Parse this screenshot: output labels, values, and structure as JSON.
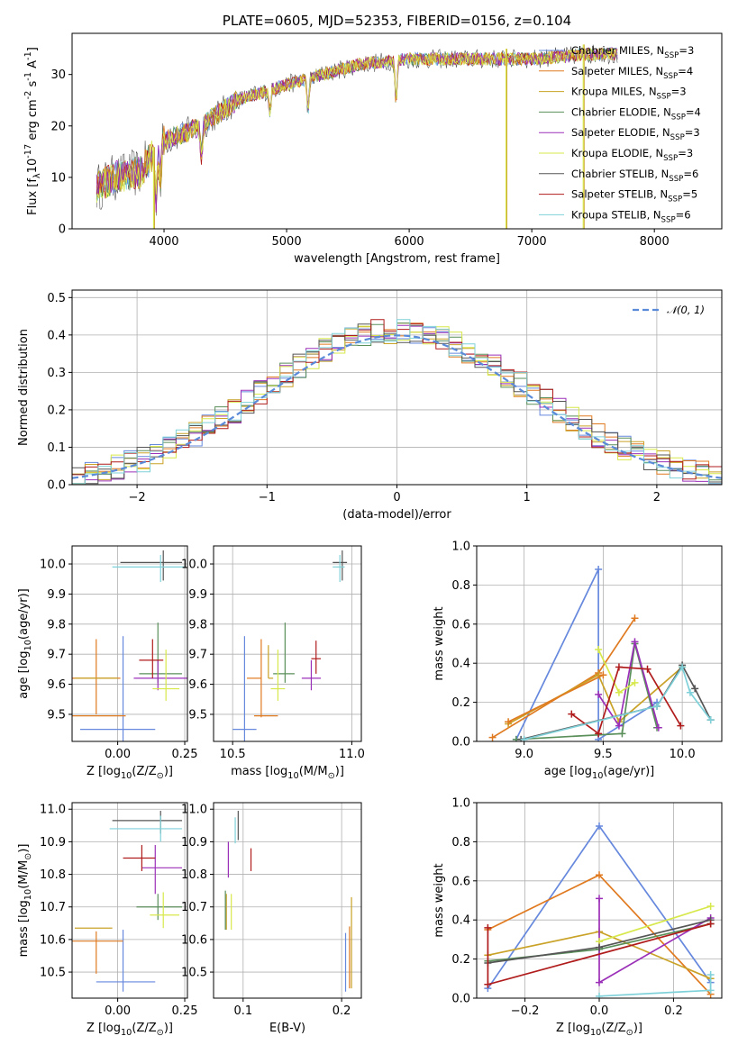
{
  "figure": {
    "title": "PLATE=0605, MJD=52353, FIBERID=0156, z=0.104"
  },
  "models": [
    {
      "name": "Chabrier MILES, N$_{SSP}$=3",
      "color": "#6688dd"
    },
    {
      "name": "Salpeter MILES, N$_{SSP}$=4",
      "color": "#e07a20"
    },
    {
      "name": "Kroupa MILES, N$_{SSP}$=3",
      "color": "#c9a227"
    },
    {
      "name": "Chabrier ELODIE, N$_{SSP}$=4",
      "color": "#5a8f5a"
    },
    {
      "name": "Salpeter ELODIE, N$_{SSP}$=3",
      "color": "#9b30b8"
    },
    {
      "name": "Kroupa ELODIE, N$_{SSP}$=3",
      "color": "#d7e84a"
    },
    {
      "name": "Chabrier STELIB, N$_{SSP}$=6",
      "color": "#555555"
    },
    {
      "name": "Salpeter STELIB, N$_{SSP}$=5",
      "color": "#b01c1c"
    },
    {
      "name": "Kroupa STELIB, N$_{SSP}$=6",
      "color": "#7fd1d9"
    }
  ],
  "chart_data": [
    {
      "id": "spectrum",
      "type": "line",
      "xlabel": "wavelength [Angstrom, rest frame]",
      "ylabel": "Flux [f$_{λ}$10$^{-17}$ erg cm$^{-2}$ s$^{-1}$ A$^{-1}$]",
      "xlim": [
        3250,
        8550
      ],
      "ylim": [
        0,
        38
      ],
      "xticks": [
        4000,
        5000,
        6000,
        7000,
        8000
      ],
      "yticks": [
        0,
        10,
        20,
        30
      ],
      "grid": false,
      "legend": "top-right",
      "continuum": {
        "x": [
          3450,
          3600,
          3800,
          4000,
          4300,
          4600,
          5000,
          5300,
          5600,
          6000,
          6500,
          7000,
          7500
        ],
        "y": [
          8,
          10,
          11,
          17,
          20,
          25,
          28,
          30,
          32,
          33,
          33,
          33,
          34
        ]
      },
      "absorption_lines": [
        {
          "x": 3935,
          "depth": 9
        },
        {
          "x": 3970,
          "depth": 7
        },
        {
          "x": 4305,
          "depth": 6
        },
        {
          "x": 4863,
          "depth": 4
        },
        {
          "x": 5175,
          "depth": 6
        },
        {
          "x": 5893,
          "depth": 8
        }
      ],
      "dropouts": [
        {
          "x": 3915,
          "y_low": 0
        },
        {
          "x": 6790,
          "y_low": 0
        },
        {
          "x": 7420,
          "y_low": 0
        }
      ]
    },
    {
      "id": "residual-histogram",
      "type": "bar",
      "xlabel": "(data-model)/error",
      "ylabel": "Normed distribution",
      "xlim": [
        -2.5,
        2.5
      ],
      "ylim": [
        0,
        0.52
      ],
      "xticks": [
        -2,
        -1,
        0,
        1,
        2
      ],
      "yticks": [
        0.0,
        0.1,
        0.2,
        0.3,
        0.4,
        0.5
      ],
      "grid": true,
      "legend": "top-right",
      "bin_width": 0.1,
      "gaussian": {
        "name": "$\\mathcal{N}(0, 1)$",
        "mean": 0,
        "sigma": 1,
        "color": "#5b8bd8"
      }
    },
    {
      "id": "age-vs-Z",
      "type": "scatter",
      "xlabel": "Z [log$_{10}$(Z/Z$_{\\odot}$)]",
      "ylabel": "age  [log$_{10}$(age/yr)]",
      "xlim": [
        -0.17,
        0.26
      ],
      "ylim": [
        9.41,
        10.06
      ],
      "xticks": [
        0.0,
        0.25
      ],
      "yticks": [
        9.5,
        9.6,
        9.7,
        9.8,
        9.9,
        10.0
      ],
      "grid": true,
      "points": [
        {
          "model": 0,
          "x": 0.02,
          "y": 9.45,
          "xerr": [
            0.16,
            0.12
          ],
          "yerr": [
            0.04,
            0.31
          ]
        },
        {
          "model": 1,
          "x": -0.08,
          "y": 9.62,
          "xerr": [
            0.1,
            0.09
          ],
          "yerr": [
            0.12,
            0.13
          ]
        },
        {
          "model": 2,
          "x": -0.02,
          "y": 9.62,
          "xerr": [
            0.14,
            0.02
          ],
          "yerr": [
            0.0,
            0.0
          ]
        },
        {
          "model": 3,
          "x": 0.15,
          "y": 9.635,
          "xerr": [
            0.07,
            0.09
          ],
          "yerr": [
            0.03,
            0.17
          ]
        },
        {
          "model": 4,
          "x": 0.15,
          "y": 9.62,
          "xerr": [
            0.09,
            0.11
          ],
          "yerr": [
            0.04,
            0.06
          ]
        },
        {
          "model": 5,
          "x": 0.18,
          "y": 9.585,
          "xerr": [
            0.05,
            0.05
          ],
          "yerr": [
            0.04,
            0.13
          ]
        },
        {
          "model": 6,
          "x": 0.17,
          "y": 10.005,
          "xerr": [
            0.16,
            0.07
          ],
          "yerr": [
            0.06,
            0.04
          ]
        },
        {
          "model": 7,
          "x": 0.13,
          "y": 9.68,
          "xerr": [
            0.05,
            0.04
          ],
          "yerr": [
            0.06,
            0.07
          ]
        },
        {
          "model": 8,
          "x": 0.16,
          "y": 9.99,
          "xerr": [
            0.18,
            0.09
          ],
          "yerr": [
            0.05,
            0.04
          ]
        },
        {
          "model": 1,
          "x": -0.05,
          "y": 9.495,
          "xerr": [
            0.13,
            0.08
          ],
          "yerr": [
            0.0,
            0.0
          ]
        }
      ]
    },
    {
      "id": "age-vs-mass",
      "type": "scatter",
      "xlabel": "mass [log$_{10}$(M/M$_{\\odot}$)]",
      "ylabel": "",
      "xlim": [
        10.42,
        11.04
      ],
      "ylim": [
        9.41,
        10.06
      ],
      "xticks": [
        10.5,
        11.0
      ],
      "yticks": [
        9.5,
        9.6,
        9.7,
        9.8,
        9.9,
        10.0
      ],
      "grid": true,
      "points": [
        {
          "model": 0,
          "x": 10.55,
          "y": 9.45,
          "xerr": [
            0.05,
            0.05
          ],
          "yerr": [
            0.04,
            0.31
          ]
        },
        {
          "model": 1,
          "x": 10.62,
          "y": 9.62,
          "xerr": [
            0.06,
            0.0
          ],
          "yerr": [
            0.13,
            0.13
          ]
        },
        {
          "model": 2,
          "x": 10.65,
          "y": 9.62,
          "xerr": [
            0.0,
            0.02
          ],
          "yerr": [
            0.0,
            0.11
          ]
        },
        {
          "model": 3,
          "x": 10.72,
          "y": 9.635,
          "xerr": [
            0.05,
            0.04
          ],
          "yerr": [
            0.03,
            0.17
          ]
        },
        {
          "model": 4,
          "x": 10.83,
          "y": 9.62,
          "xerr": [
            0.04,
            0.04
          ],
          "yerr": [
            0.04,
            0.06
          ]
        },
        {
          "model": 5,
          "x": 10.69,
          "y": 9.585,
          "xerr": [
            0.03,
            0.03
          ],
          "yerr": [
            0.04,
            0.13
          ]
        },
        {
          "model": 6,
          "x": 10.96,
          "y": 10.005,
          "xerr": [
            0.04,
            0.02
          ],
          "yerr": [
            0.06,
            0.04
          ]
        },
        {
          "model": 7,
          "x": 10.85,
          "y": 9.685,
          "xerr": [
            0.02,
            0.02
          ],
          "yerr": [
            0.05,
            0.06
          ]
        },
        {
          "model": 8,
          "x": 10.95,
          "y": 9.99,
          "xerr": [
            0.03,
            0.02
          ],
          "yerr": [
            0.05,
            0.04
          ]
        },
        {
          "model": 1,
          "x": 10.61,
          "y": 9.495,
          "xerr": [
            0.02,
            0.08
          ],
          "yerr": [
            0.0,
            0.0
          ]
        }
      ]
    },
    {
      "id": "mass-weight-vs-age",
      "type": "line",
      "xlabel": "age  [log$_{10}$(age/yr)]",
      "ylabel": "mass weight",
      "xlim": [
        8.7,
        10.25
      ],
      "ylim": [
        0.0,
        1.0
      ],
      "xticks": [
        9.0,
        9.5,
        10.0
      ],
      "yticks": [
        0.0,
        0.2,
        0.4,
        0.6,
        0.8,
        1.0
      ],
      "grid": true,
      "series": [
        {
          "model": 0,
          "x": [
            8.95,
            9.47,
            9.47,
            9.84
          ],
          "y": [
            0.01,
            0.88,
            0.01,
            0.2
          ]
        },
        {
          "model": 1,
          "x": [
            8.8,
            9.47,
            9.7
          ],
          "y": [
            0.02,
            0.35,
            0.63
          ]
        },
        {
          "model": 2,
          "x": [
            8.9,
            9.47,
            9.6,
            10.0
          ],
          "y": [
            0.09,
            0.34,
            0.1,
            0.38
          ]
        },
        {
          "model": 3,
          "x": [
            8.95,
            9.62,
            9.7,
            9.84
          ],
          "y": [
            0.01,
            0.04,
            0.5,
            0.07
          ]
        },
        {
          "model": 4,
          "x": [
            9.47,
            9.6,
            9.7,
            9.85
          ],
          "y": [
            0.24,
            0.08,
            0.51,
            0.07
          ]
        },
        {
          "model": 5,
          "x": [
            9.47,
            9.6,
            9.7
          ],
          "y": [
            0.47,
            0.25,
            0.3
          ]
        },
        {
          "model": 6,
          "x": [
            8.98,
            9.84,
            10.0,
            10.08,
            10.18
          ],
          "y": [
            0.01,
            0.18,
            0.39,
            0.27,
            0.11
          ]
        },
        {
          "model": 7,
          "x": [
            9.3,
            9.47,
            9.6,
            9.78,
            9.99
          ],
          "y": [
            0.14,
            0.04,
            0.38,
            0.37,
            0.08
          ]
        },
        {
          "model": 8,
          "x": [
            9.0,
            9.84,
            10.0,
            10.05,
            10.18
          ],
          "y": [
            0.01,
            0.18,
            0.38,
            0.25,
            0.11
          ]
        },
        {
          "model": 1,
          "x": [
            8.9,
            9.5
          ],
          "y": [
            0.1,
            0.34
          ]
        }
      ]
    },
    {
      "id": "mass-vs-Z",
      "type": "scatter",
      "xlabel": "Z [log$_{10}$(Z/Z$_{\\odot}$)]",
      "ylabel": "mass [log$_{10}$(M/M$_{\\odot}$)]",
      "xlim": [
        -0.17,
        0.26
      ],
      "ylim": [
        10.42,
        11.02
      ],
      "xticks": [
        0.0,
        0.25
      ],
      "yticks": [
        10.5,
        10.6,
        10.7,
        10.8,
        10.9,
        11.0
      ],
      "grid": true,
      "points": [
        {
          "model": 0,
          "x": 0.02,
          "y": 10.47,
          "xerr": [
            0.1,
            0.12
          ],
          "yerr": [
            0.03,
            0.16
          ]
        },
        {
          "model": 1,
          "x": -0.08,
          "y": 10.595,
          "xerr": [
            0.09,
            0.1
          ],
          "yerr": [
            0.1,
            0.03
          ]
        },
        {
          "model": 2,
          "x": -0.02,
          "y": 10.635,
          "xerr": [
            0.14,
            0.0
          ],
          "yerr": [
            0.0,
            0.0
          ]
        },
        {
          "model": 3,
          "x": 0.15,
          "y": 10.7,
          "xerr": [
            0.08,
            0.09
          ],
          "yerr": [
            0.04,
            0.04
          ]
        },
        {
          "model": 4,
          "x": 0.14,
          "y": 10.82,
          "xerr": [
            0.05,
            0.1
          ],
          "yerr": [
            0.08,
            0.07
          ]
        },
        {
          "model": 5,
          "x": 0.17,
          "y": 10.675,
          "xerr": [
            0.05,
            0.06
          ],
          "yerr": [
            0.04,
            0.07
          ]
        },
        {
          "model": 6,
          "x": 0.16,
          "y": 10.965,
          "xerr": [
            0.18,
            0.08
          ],
          "yerr": [
            0.04,
            0.03
          ]
        },
        {
          "model": 7,
          "x": 0.09,
          "y": 10.85,
          "xerr": [
            0.07,
            0.05
          ],
          "yerr": [
            0.04,
            0.04
          ]
        },
        {
          "model": 8,
          "x": 0.16,
          "y": 10.94,
          "xerr": [
            0.19,
            0.08
          ],
          "yerr": [
            0.04,
            0.04
          ]
        },
        {
          "model": 2,
          "x": 0.0,
          "y": 10.635,
          "xerr": [
            0.0,
            0.0
          ],
          "yerr": [
            0.0,
            0.0
          ]
        }
      ]
    },
    {
      "id": "mass-vs-ebv",
      "type": "scatter",
      "xlabel": "E(B-V)",
      "ylabel": "",
      "xlim": [
        0.07,
        0.22
      ],
      "ylim": [
        10.42,
        11.02
      ],
      "xticks": [
        0.1,
        0.2
      ],
      "yticks": [
        10.5,
        10.6,
        10.7,
        10.8,
        10.9,
        11.0
      ],
      "grid": true,
      "points": [
        {
          "model": 0,
          "x": 0.204,
          "y": 10.47,
          "xerr": [
            0.0,
            0.0
          ],
          "yerr": [
            0.03,
            0.15
          ]
        },
        {
          "model": 1,
          "x": 0.208,
          "y": 10.6,
          "xerr": [
            0.0,
            0.0
          ],
          "yerr": [
            0.15,
            0.04
          ]
        },
        {
          "model": 2,
          "x": 0.083,
          "y": 10.7,
          "xerr": [
            0.0,
            0.0
          ],
          "yerr": [
            0.07,
            0.04
          ]
        },
        {
          "model": 3,
          "x": 0.082,
          "y": 10.7,
          "xerr": [
            0.0,
            0.0
          ],
          "yerr": [
            0.07,
            0.05
          ]
        },
        {
          "model": 4,
          "x": 0.085,
          "y": 10.83,
          "xerr": [
            0.0,
            0.0
          ],
          "yerr": [
            0.04,
            0.07
          ]
        },
        {
          "model": 5,
          "x": 0.088,
          "y": 10.68,
          "xerr": [
            0.0,
            0.0
          ],
          "yerr": [
            0.05,
            0.06
          ]
        },
        {
          "model": 6,
          "x": 0.095,
          "y": 10.955,
          "xerr": [
            0.0,
            0.0
          ],
          "yerr": [
            0.05,
            0.04
          ]
        },
        {
          "model": 7,
          "x": 0.108,
          "y": 10.84,
          "xerr": [
            0.0,
            0.0
          ],
          "yerr": [
            0.03,
            0.04
          ]
        },
        {
          "model": 8,
          "x": 0.092,
          "y": 10.935,
          "xerr": [
            0.0,
            0.0
          ],
          "yerr": [
            0.04,
            0.04
          ]
        },
        {
          "model": 2,
          "x": 0.21,
          "y": 10.6,
          "xerr": [
            0.0,
            0.0
          ],
          "yerr": [
            0.15,
            0.13
          ]
        }
      ]
    },
    {
      "id": "mass-weight-vs-Z",
      "type": "line",
      "xlabel": "Z [log$_{10}$(Z/Z$_{\\odot}$)]",
      "ylabel": "mass weight",
      "xlim": [
        -0.33,
        0.33
      ],
      "ylim": [
        0.0,
        1.0
      ],
      "xticks": [
        -0.2,
        0.0,
        0.2
      ],
      "yticks": [
        0.0,
        0.2,
        0.4,
        0.6,
        0.8,
        1.0
      ],
      "grid": true,
      "series": [
        {
          "model": 0,
          "x": [
            -0.3,
            0.0,
            0.3
          ],
          "y": [
            0.05,
            0.88,
            0.08
          ]
        },
        {
          "model": 1,
          "x": [
            -0.3,
            0.0,
            0.3
          ],
          "y": [
            0.35,
            0.63,
            0.02
          ]
        },
        {
          "model": 2,
          "x": [
            -0.3,
            0.0,
            0.3
          ],
          "y": [
            0.22,
            0.34,
            0.1
          ]
        },
        {
          "model": 3,
          "x": [
            -0.3,
            0.0,
            0.3
          ],
          "y": [
            0.19,
            0.25,
            0.38
          ]
        },
        {
          "model": 4,
          "x": [
            0.0,
            0.0,
            0.3
          ],
          "y": [
            0.51,
            0.08,
            0.41
          ]
        },
        {
          "model": 5,
          "x": [
            0.0,
            0.3
          ],
          "y": [
            0.29,
            0.47
          ]
        },
        {
          "model": 6,
          "x": [
            -0.3,
            0.0,
            0.3
          ],
          "y": [
            0.18,
            0.26,
            0.4
          ]
        },
        {
          "model": 7,
          "x": [
            -0.3,
            -0.3,
            0.3
          ],
          "y": [
            0.36,
            0.07,
            0.38
          ]
        },
        {
          "model": 8,
          "x": [
            0.0,
            0.3,
            0.3
          ],
          "y": [
            0.01,
            0.04,
            0.12
          ]
        }
      ]
    }
  ]
}
